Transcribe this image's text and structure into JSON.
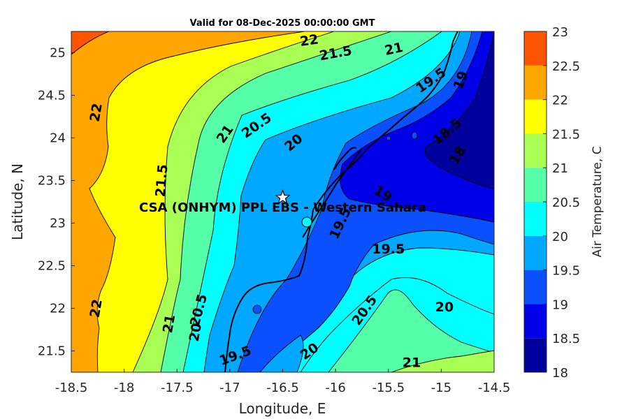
{
  "title": "Valid for 08-Dec-2025 00:00:00 GMT",
  "chart_data": {
    "type": "contourf",
    "title": "Valid for 08-Dec-2025 00:00:00 GMT",
    "xlabel": "Longitude, E",
    "ylabel": "Latitude, N",
    "xlim": [
      -18.5,
      -14.5
    ],
    "ylim": [
      21.25,
      25.25
    ],
    "x_ticks": [
      "-18.5",
      "-18",
      "-17.5",
      "-17",
      "-16.5",
      "-16",
      "-15.5",
      "-15",
      "-14.5"
    ],
    "y_ticks": [
      "21.5",
      "22",
      "22.5",
      "23",
      "23.5",
      "24",
      "24.5",
      "25"
    ],
    "colorbar": {
      "label": "Air Temperature, C",
      "levels": [
        18,
        18.5,
        19,
        19.5,
        20,
        20.5,
        21,
        21.5,
        22,
        22.5,
        23
      ],
      "tick_labels": [
        "18",
        "18.5",
        "19",
        "19.5",
        "20",
        "20.5",
        "21",
        "21.5",
        "22",
        "22.5",
        "23"
      ],
      "colors": [
        "#00009c",
        "#0000e8",
        "#0a50ff",
        "#00a8ff",
        "#00ffff",
        "#55ffa8",
        "#aaff55",
        "#ffff00",
        "#ffa600",
        "#ff5500",
        "#ff0000"
      ]
    },
    "contour_labels": [
      {
        "text": "22",
        "lon": -18.27,
        "lat": 24.3
      },
      {
        "text": "22",
        "lon": -16.25,
        "lat": 25.15
      },
      {
        "text": "21.5",
        "lon": -16.0,
        "lat": 25.0
      },
      {
        "text": "21",
        "lon": -15.45,
        "lat": 25.05
      },
      {
        "text": "21",
        "lon": -17.05,
        "lat": 24.05
      },
      {
        "text": "20.5",
        "lon": -16.75,
        "lat": 24.15
      },
      {
        "text": "20",
        "lon": -16.4,
        "lat": 23.95
      },
      {
        "text": "19.5",
        "lon": -15.1,
        "lat": 24.68
      },
      {
        "text": "19",
        "lon": -14.82,
        "lat": 24.68
      },
      {
        "text": "18.5",
        "lon": -14.95,
        "lat": 24.08
      },
      {
        "text": "18",
        "lon": -14.85,
        "lat": 23.8
      },
      {
        "text": "21.5",
        "lon": -17.65,
        "lat": 23.5
      },
      {
        "text": "19",
        "lon": -15.55,
        "lat": 23.35
      },
      {
        "text": "19.5",
        "lon": -15.96,
        "lat": 23.0
      },
      {
        "text": "19.5",
        "lon": -15.5,
        "lat": 22.7
      },
      {
        "text": "22",
        "lon": -18.27,
        "lat": 22.0
      },
      {
        "text": "20.5",
        "lon": -17.3,
        "lat": 21.98
      },
      {
        "text": "21",
        "lon": -17.58,
        "lat": 21.82
      },
      {
        "text": "20",
        "lon": -17.33,
        "lat": 21.72
      },
      {
        "text": "20.5",
        "lon": -15.73,
        "lat": 21.98
      },
      {
        "text": "20",
        "lon": -14.97,
        "lat": 22.02
      },
      {
        "text": "19.5",
        "lon": -16.95,
        "lat": 21.45
      },
      {
        "text": "20",
        "lon": -16.25,
        "lat": 21.5
      },
      {
        "text": "21",
        "lon": -15.28,
        "lat": 21.37
      }
    ],
    "site": {
      "name": "CSA (ONHYM) PPL EBS - Western Sahara",
      "marker": "star",
      "lon": -16.5,
      "lat": 23.3
    }
  }
}
